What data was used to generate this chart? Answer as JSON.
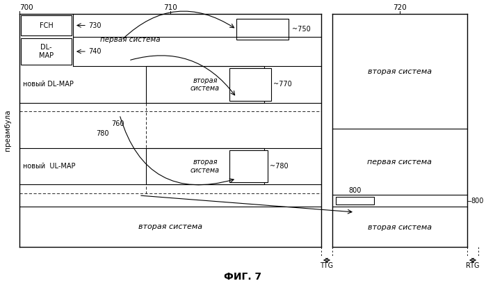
{
  "fig_width": 6.99,
  "fig_height": 4.04,
  "dpi": 100,
  "bg_color": "#ffffff",
  "title": "ФИГ. 7",
  "frame700_label": "700",
  "frame710_label": "710",
  "frame720_label": "720",
  "label_FCH": "FCH",
  "label_730": "730",
  "label_DL_MAP": "DL-\nMAP",
  "label_740": "740",
  "label_pervaya": "первая система",
  "label_vtoraya": "вторая\nсистема",
  "label_vtoraya2": "вторая система",
  "label_pervaya2": "первая система",
  "label_novyj_DL": "новый DL-MAP",
  "label_novyj_UL": "новый  UL-MAP",
  "label_760": "760",
  "label_780": "780",
  "label_750": "750",
  "label_770": "770",
  "label_800": "800",
  "label_800b": "800",
  "label_TTG": "TTG",
  "label_RTG": "RTG",
  "label_preambula": "преамбула"
}
